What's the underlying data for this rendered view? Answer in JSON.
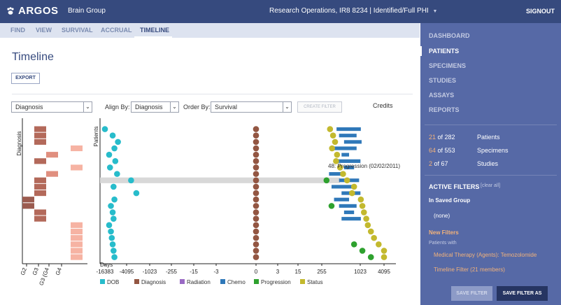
{
  "header": {
    "app_name": "ARGOS",
    "group": "Brain Group",
    "study": "Research Operations, IR8 8234 | Identified/Full PHI",
    "signout": "SIGNOUT"
  },
  "tabs": [
    {
      "label": "FIND"
    },
    {
      "label": "VIEW"
    },
    {
      "label": "SURVIVAL"
    },
    {
      "label": "ACCRUAL"
    },
    {
      "label": "TIMELINE"
    }
  ],
  "main": {
    "title": "Timeline",
    "export_label": "EXPORT",
    "diagnosis_select": "Diagnosis",
    "align_label": "Align By:",
    "align_value": "Diagnosis",
    "order_label": "Order By:",
    "order_value": "Survival",
    "create_filter_label": "CREATE FILTER",
    "credits_label": "Credits"
  },
  "sidebar": {
    "nav": [
      {
        "label": "DASHBOARD"
      },
      {
        "label": "PATIENTS"
      },
      {
        "label": "SPECIMENS"
      },
      {
        "label": "STUDIES"
      },
      {
        "label": "ASSAYS"
      },
      {
        "label": "REPORTS"
      }
    ],
    "counts": [
      {
        "value": "21",
        "total": "of 282",
        "label": "Patients"
      },
      {
        "value": "64",
        "total": "of 553",
        "label": "Specimens"
      },
      {
        "value": "2",
        "total": "of 67",
        "label": "Studies"
      }
    ],
    "active_filters_title": "ACTIVE FILTERS",
    "clear_all": "[clear all]",
    "saved_group_title": "In Saved Group",
    "saved_group_value": "(none)",
    "new_filters_title": "New Filters",
    "patients_with": "Patients with",
    "filters": [
      {
        "label": "Medical Therapy (Agents): Temozolomide"
      },
      {
        "label": "Timeline Filter (21 members)"
      }
    ],
    "save_filter": "SAVE FILTER",
    "save_filter_as": "SAVE FILTER AS"
  },
  "chart_data": [
    {
      "type": "heatmap",
      "ylabel": "Diagnosis",
      "categories": [
        "G2",
        "G3",
        "G3 (G4",
        "G4"
      ],
      "colors": {
        "G2": "#9b5b4f",
        "G3": "#b3695a",
        "G3 (G4": "#e08f7f",
        "G4": "#f6b3a3"
      },
      "rows": [
        "G3",
        "G3",
        "G3",
        "G4",
        "G3 (G4",
        "G3",
        "G4",
        "G3 (G4",
        "G3",
        "G3",
        "G3",
        "G2",
        "G2",
        "G3",
        "G3",
        "G4",
        "G4",
        "G4",
        "G4",
        "G4",
        "G4"
      ]
    },
    {
      "type": "scatter",
      "ylabel": "Patients",
      "xlabel": "Days",
      "x_ticks": [
        "-16383",
        "-4095",
        "-1023",
        "-255",
        "-15",
        "-3",
        "0",
        "3",
        "15",
        "255",
        "1023",
        "4095"
      ],
      "legend": [
        {
          "name": "DOB",
          "color": "#27bccb"
        },
        {
          "name": "Diagnosis",
          "color": "#935642"
        },
        {
          "name": "Radiation",
          "color": "#9a6ac4"
        },
        {
          "name": "Chemo",
          "color": "#2f78b9"
        },
        {
          "name": "Progression",
          "color": "#2ea12e"
        },
        {
          "name": "Status",
          "color": "#c3b92e"
        }
      ],
      "hover_label": "48: Progression (02/02/2011)",
      "highlighted_row": 8,
      "dob_rows": [
        -16383,
        -12000,
        -9000,
        -11000,
        -14000,
        -10500,
        -13500,
        -9500,
        -3500,
        -11500,
        -2800,
        -11000,
        -13000,
        -12000,
        -11500,
        -14000,
        -13000,
        -12500,
        -12000,
        -11500,
        -11000
      ],
      "chemo_rows": [
        [
          550,
          1100
        ],
        [
          600,
          950
        ],
        [
          700,
          1200
        ],
        [
          500,
          950
        ],
        [
          650,
          800
        ],
        [
          550,
          1050
        ],
        [
          700,
          900
        ],
        [
          400,
          700
        ],
        [
          600,
          1000
        ],
        [
          450,
          900
        ],
        [
          650,
          1050
        ],
        [
          500,
          800
        ],
        [
          600,
          950
        ],
        [
          700,
          900
        ],
        [
          650,
          1100
        ],
        [
          0,
          0
        ],
        [
          0,
          0
        ],
        [
          0,
          0
        ],
        [
          0,
          0
        ],
        [
          0,
          0
        ],
        [
          0,
          0
        ]
      ],
      "progression_rows": [
        0,
        0,
        0,
        0,
        0,
        0,
        0,
        0,
        350,
        0,
        0,
        0,
        450,
        0,
        0,
        0,
        0,
        0,
        900,
        1300,
        2400
      ],
      "status_rows": [
        420,
        480,
        520,
        460,
        560,
        540,
        620,
        680,
        760,
        900,
        860,
        1100,
        1300,
        1500,
        1800,
        2000,
        2400,
        2800,
        3400,
        4300,
        5200
      ]
    }
  ]
}
